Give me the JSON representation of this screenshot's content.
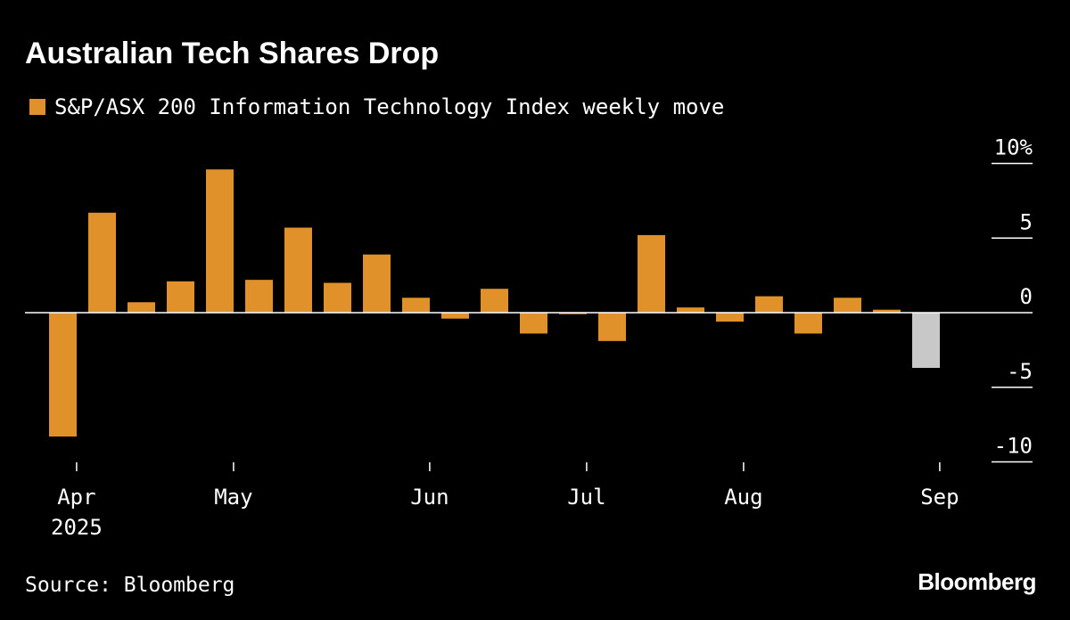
{
  "header": {
    "title": "Australian Tech Shares Drop"
  },
  "legend": {
    "label": "S&P/ASX 200 Information Technology Index weekly move"
  },
  "footer": {
    "source": "Source: Bloomberg",
    "logo": "Bloomberg"
  },
  "colors": {
    "background": "#000000",
    "bar": "#E0912A",
    "highlight_bar": "#C8C8C8",
    "text": "#FFFFFF"
  },
  "chart_data": {
    "type": "bar",
    "title": "Australian Tech Shares Drop",
    "series": [
      {
        "name": "S&P/ASX 200 Information Technology Index weekly move",
        "values": [
          -8.3,
          6.7,
          0.7,
          2.1,
          9.6,
          2.2,
          5.7,
          2.0,
          3.9,
          1.0,
          -0.4,
          1.6,
          -1.4,
          -0.1,
          -1.9,
          5.2,
          0.35,
          -0.6,
          1.1,
          -1.4,
          1.0,
          0.2,
          -3.7
        ]
      }
    ],
    "highlight_index": 22,
    "ylabel": "",
    "xlabel": "",
    "ylim": [
      -10,
      10
    ],
    "yticks": [
      10,
      5,
      0,
      -5,
      -10
    ],
    "ytick_labels": [
      "10%",
      "5",
      "0",
      "-5",
      "-10"
    ],
    "xtick_labels": [
      {
        "label": "Apr",
        "sub": "2025",
        "bar_index": 0.35
      },
      {
        "label": "May",
        "sub": "",
        "bar_index": 4.35
      },
      {
        "label": "Jun",
        "sub": "",
        "bar_index": 9.35
      },
      {
        "label": "Jul",
        "sub": "",
        "bar_index": 13.35
      },
      {
        "label": "Aug",
        "sub": "",
        "bar_index": 17.35
      },
      {
        "label": "Sep",
        "sub": "",
        "bar_index": 22.35
      }
    ],
    "grid": false,
    "legend_position": "top-left"
  }
}
